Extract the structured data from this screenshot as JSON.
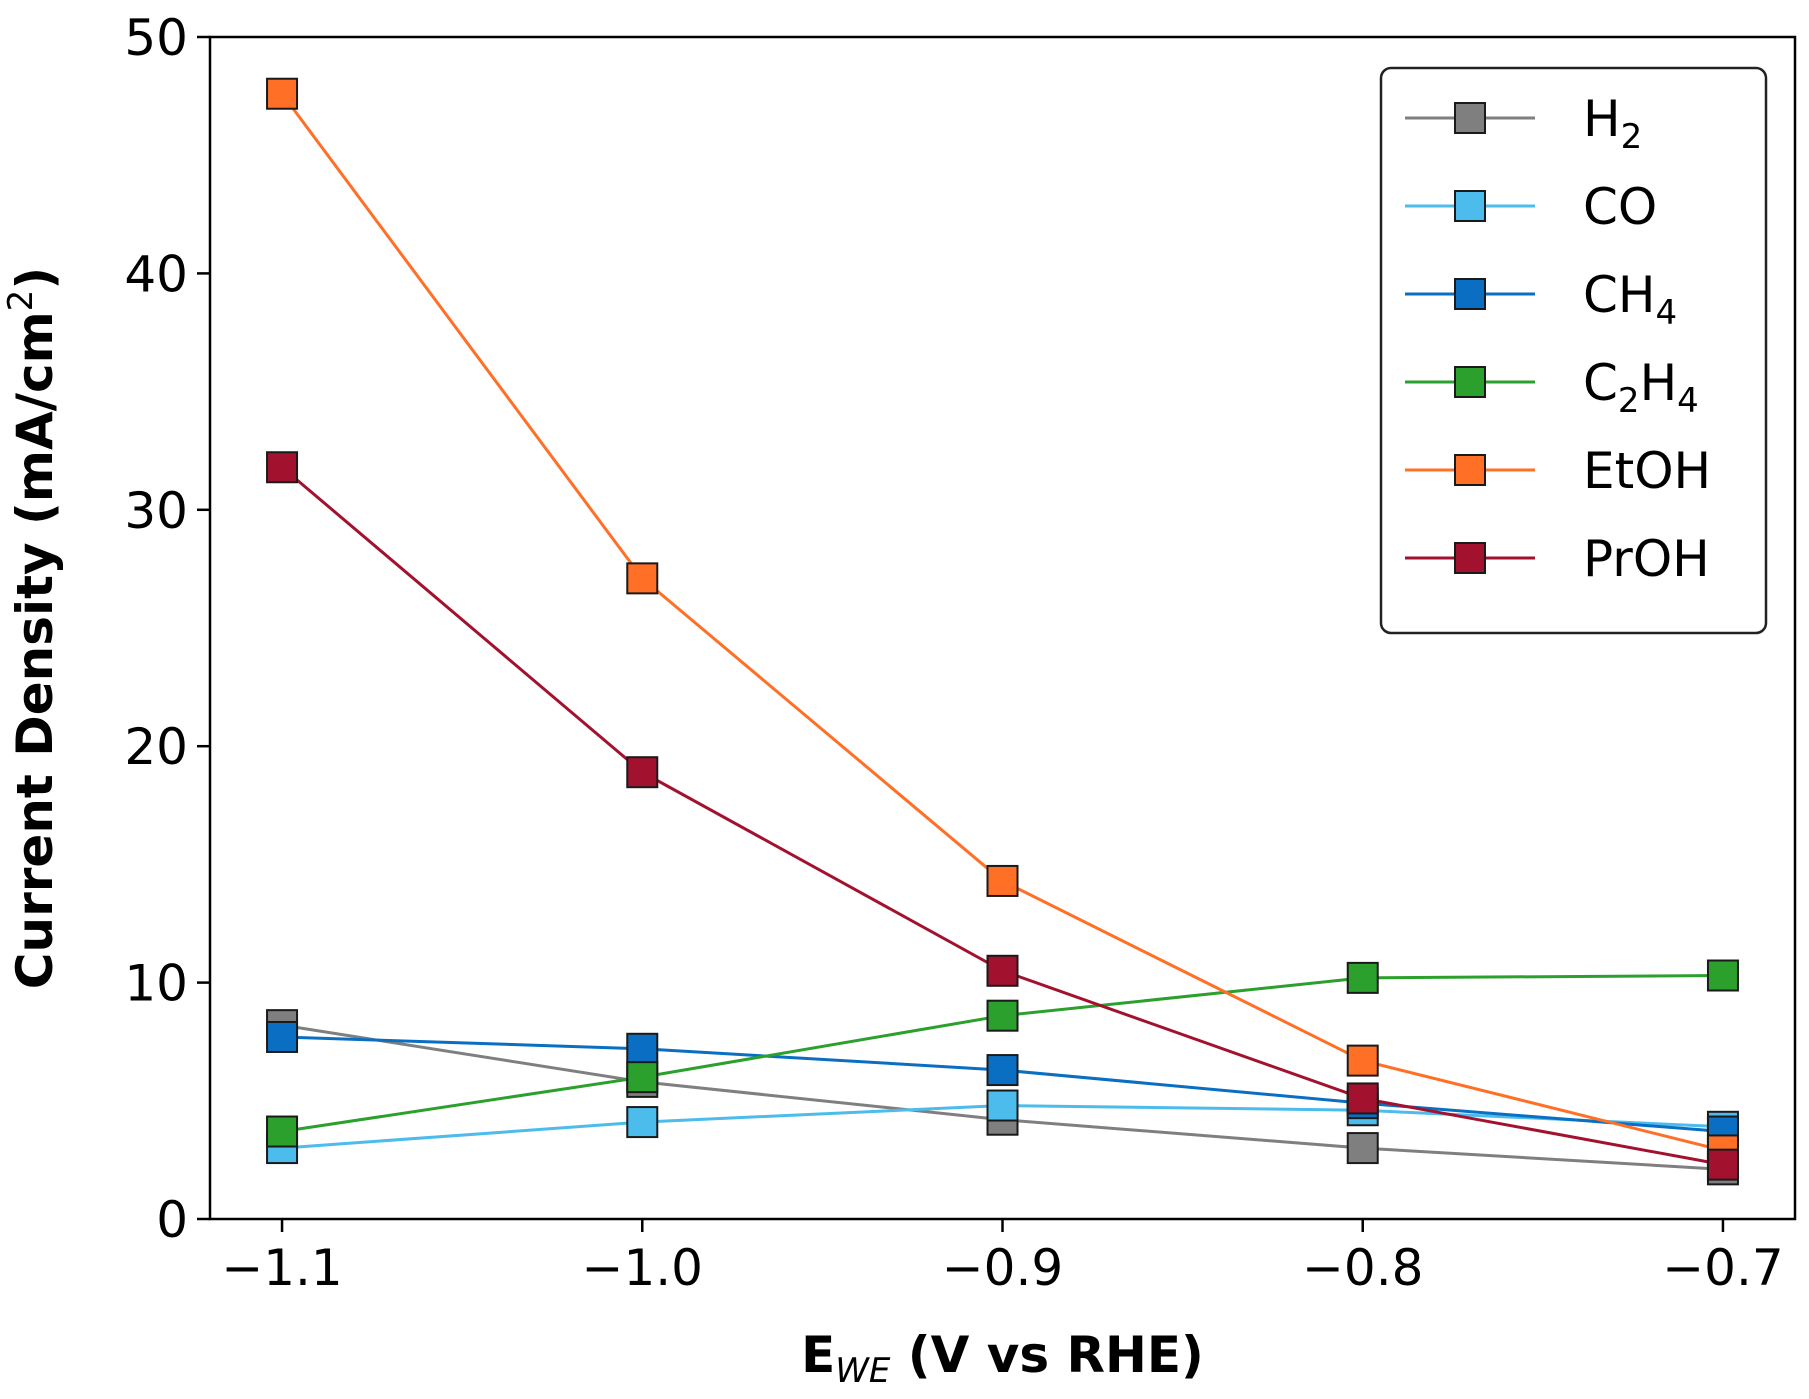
{
  "chart_data": {
    "type": "line",
    "xlabel": {
      "main": "E",
      "sub": "WE",
      "rest": " (V vs RHE)"
    },
    "ylabel": {
      "main": "Current Density (mA/cm",
      "sup": "2",
      "rest": ")"
    },
    "xlim": [
      -1.12,
      -0.68
    ],
    "ylim": [
      0,
      50
    ],
    "x": [
      -1.1,
      -1.0,
      -0.9,
      -0.8,
      -0.7
    ],
    "x_tick_labels": [
      "−1.1",
      "−1.0",
      "−0.9",
      "−0.8",
      "−0.7"
    ],
    "y_ticks": [
      0,
      10,
      20,
      30,
      40,
      50
    ],
    "y_tick_labels": [
      "0",
      "10",
      "20",
      "30",
      "40",
      "50"
    ],
    "legend_position": "top-right",
    "series": [
      {
        "name": "H2",
        "label_parts": [
          {
            "t": "H"
          },
          {
            "t": "2",
            "sub": true
          }
        ],
        "color": "#7f7f7f",
        "values": [
          8.2,
          5.8,
          4.2,
          3.0,
          2.1
        ]
      },
      {
        "name": "CO",
        "label_parts": [
          {
            "t": "CO"
          }
        ],
        "color": "#4cbcec",
        "values": [
          3.0,
          4.1,
          4.8,
          4.6,
          3.9
        ]
      },
      {
        "name": "CH4",
        "label_parts": [
          {
            "t": "CH"
          },
          {
            "t": "4",
            "sub": true
          }
        ],
        "color": "#0a6fc2",
        "values": [
          7.7,
          7.2,
          6.3,
          4.9,
          3.7
        ]
      },
      {
        "name": "C2H4",
        "label_parts": [
          {
            "t": "C"
          },
          {
            "t": "2",
            "sub": true
          },
          {
            "t": "H"
          },
          {
            "t": "4",
            "sub": true
          }
        ],
        "color": "#2ca02c",
        "values": [
          3.7,
          6.0,
          8.6,
          10.2,
          10.3
        ]
      },
      {
        "name": "EtOH",
        "label_parts": [
          {
            "t": "EtOH"
          }
        ],
        "color": "#ff7026",
        "values": [
          47.6,
          27.1,
          14.3,
          6.7,
          2.9
        ]
      },
      {
        "name": "PrOH",
        "label_parts": [
          {
            "t": "PrOH"
          }
        ],
        "color": "#a2122e",
        "values": [
          31.8,
          18.9,
          10.5,
          5.1,
          2.3
        ]
      }
    ]
  }
}
